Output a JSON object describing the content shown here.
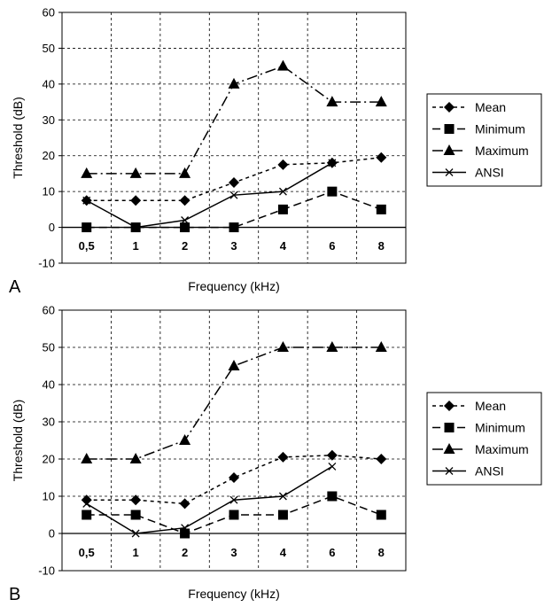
{
  "chart_data": [
    {
      "panel": "A",
      "type": "line",
      "xlabel": "Frequency (kHz)",
      "ylabel": "Threshold (dB)",
      "categories": [
        "0,5",
        "1",
        "2",
        "3",
        "4",
        "6",
        "8"
      ],
      "ylim": [
        -10,
        60
      ],
      "yticks": [
        -10,
        0,
        10,
        20,
        30,
        40,
        50,
        60
      ],
      "grid": true,
      "legend_position": "right",
      "series": [
        {
          "name": "Mean",
          "marker": "diamond",
          "dash": "short",
          "values": [
            7.5,
            7.5,
            7.5,
            12.5,
            17.5,
            18,
            19.5
          ]
        },
        {
          "name": "Minimum",
          "marker": "square",
          "dash": "dash",
          "values": [
            0,
            0,
            0,
            0,
            5,
            10,
            5
          ]
        },
        {
          "name": "Maximum",
          "marker": "triangle",
          "dash": "dashdot",
          "values": [
            15,
            15,
            15,
            40,
            45,
            35,
            35
          ]
        },
        {
          "name": "ANSI",
          "marker": "x",
          "dash": "solid",
          "values": [
            7.5,
            0,
            2,
            9,
            10,
            18,
            null
          ]
        }
      ]
    },
    {
      "panel": "B",
      "type": "line",
      "xlabel": "Frequency (kHz)",
      "ylabel": "Threshold (dB)",
      "categories": [
        "0,5",
        "1",
        "2",
        "3",
        "4",
        "6",
        "8"
      ],
      "ylim": [
        -10,
        60
      ],
      "yticks": [
        -10,
        0,
        10,
        20,
        30,
        40,
        50,
        60
      ],
      "grid": true,
      "legend_position": "right",
      "series": [
        {
          "name": "Mean",
          "marker": "diamond",
          "dash": "short",
          "values": [
            9,
            9,
            8,
            15,
            20.5,
            21,
            20
          ]
        },
        {
          "name": "Minimum",
          "marker": "square",
          "dash": "dash",
          "values": [
            5,
            5,
            0,
            5,
            5,
            10,
            5
          ]
        },
        {
          "name": "Maximum",
          "marker": "triangle",
          "dash": "dashdot",
          "values": [
            20,
            20,
            25,
            45,
            50,
            50,
            50
          ]
        },
        {
          "name": "ANSI",
          "marker": "x",
          "dash": "solid",
          "values": [
            8,
            0,
            1.5,
            9,
            10,
            18,
            null
          ]
        }
      ]
    }
  ]
}
